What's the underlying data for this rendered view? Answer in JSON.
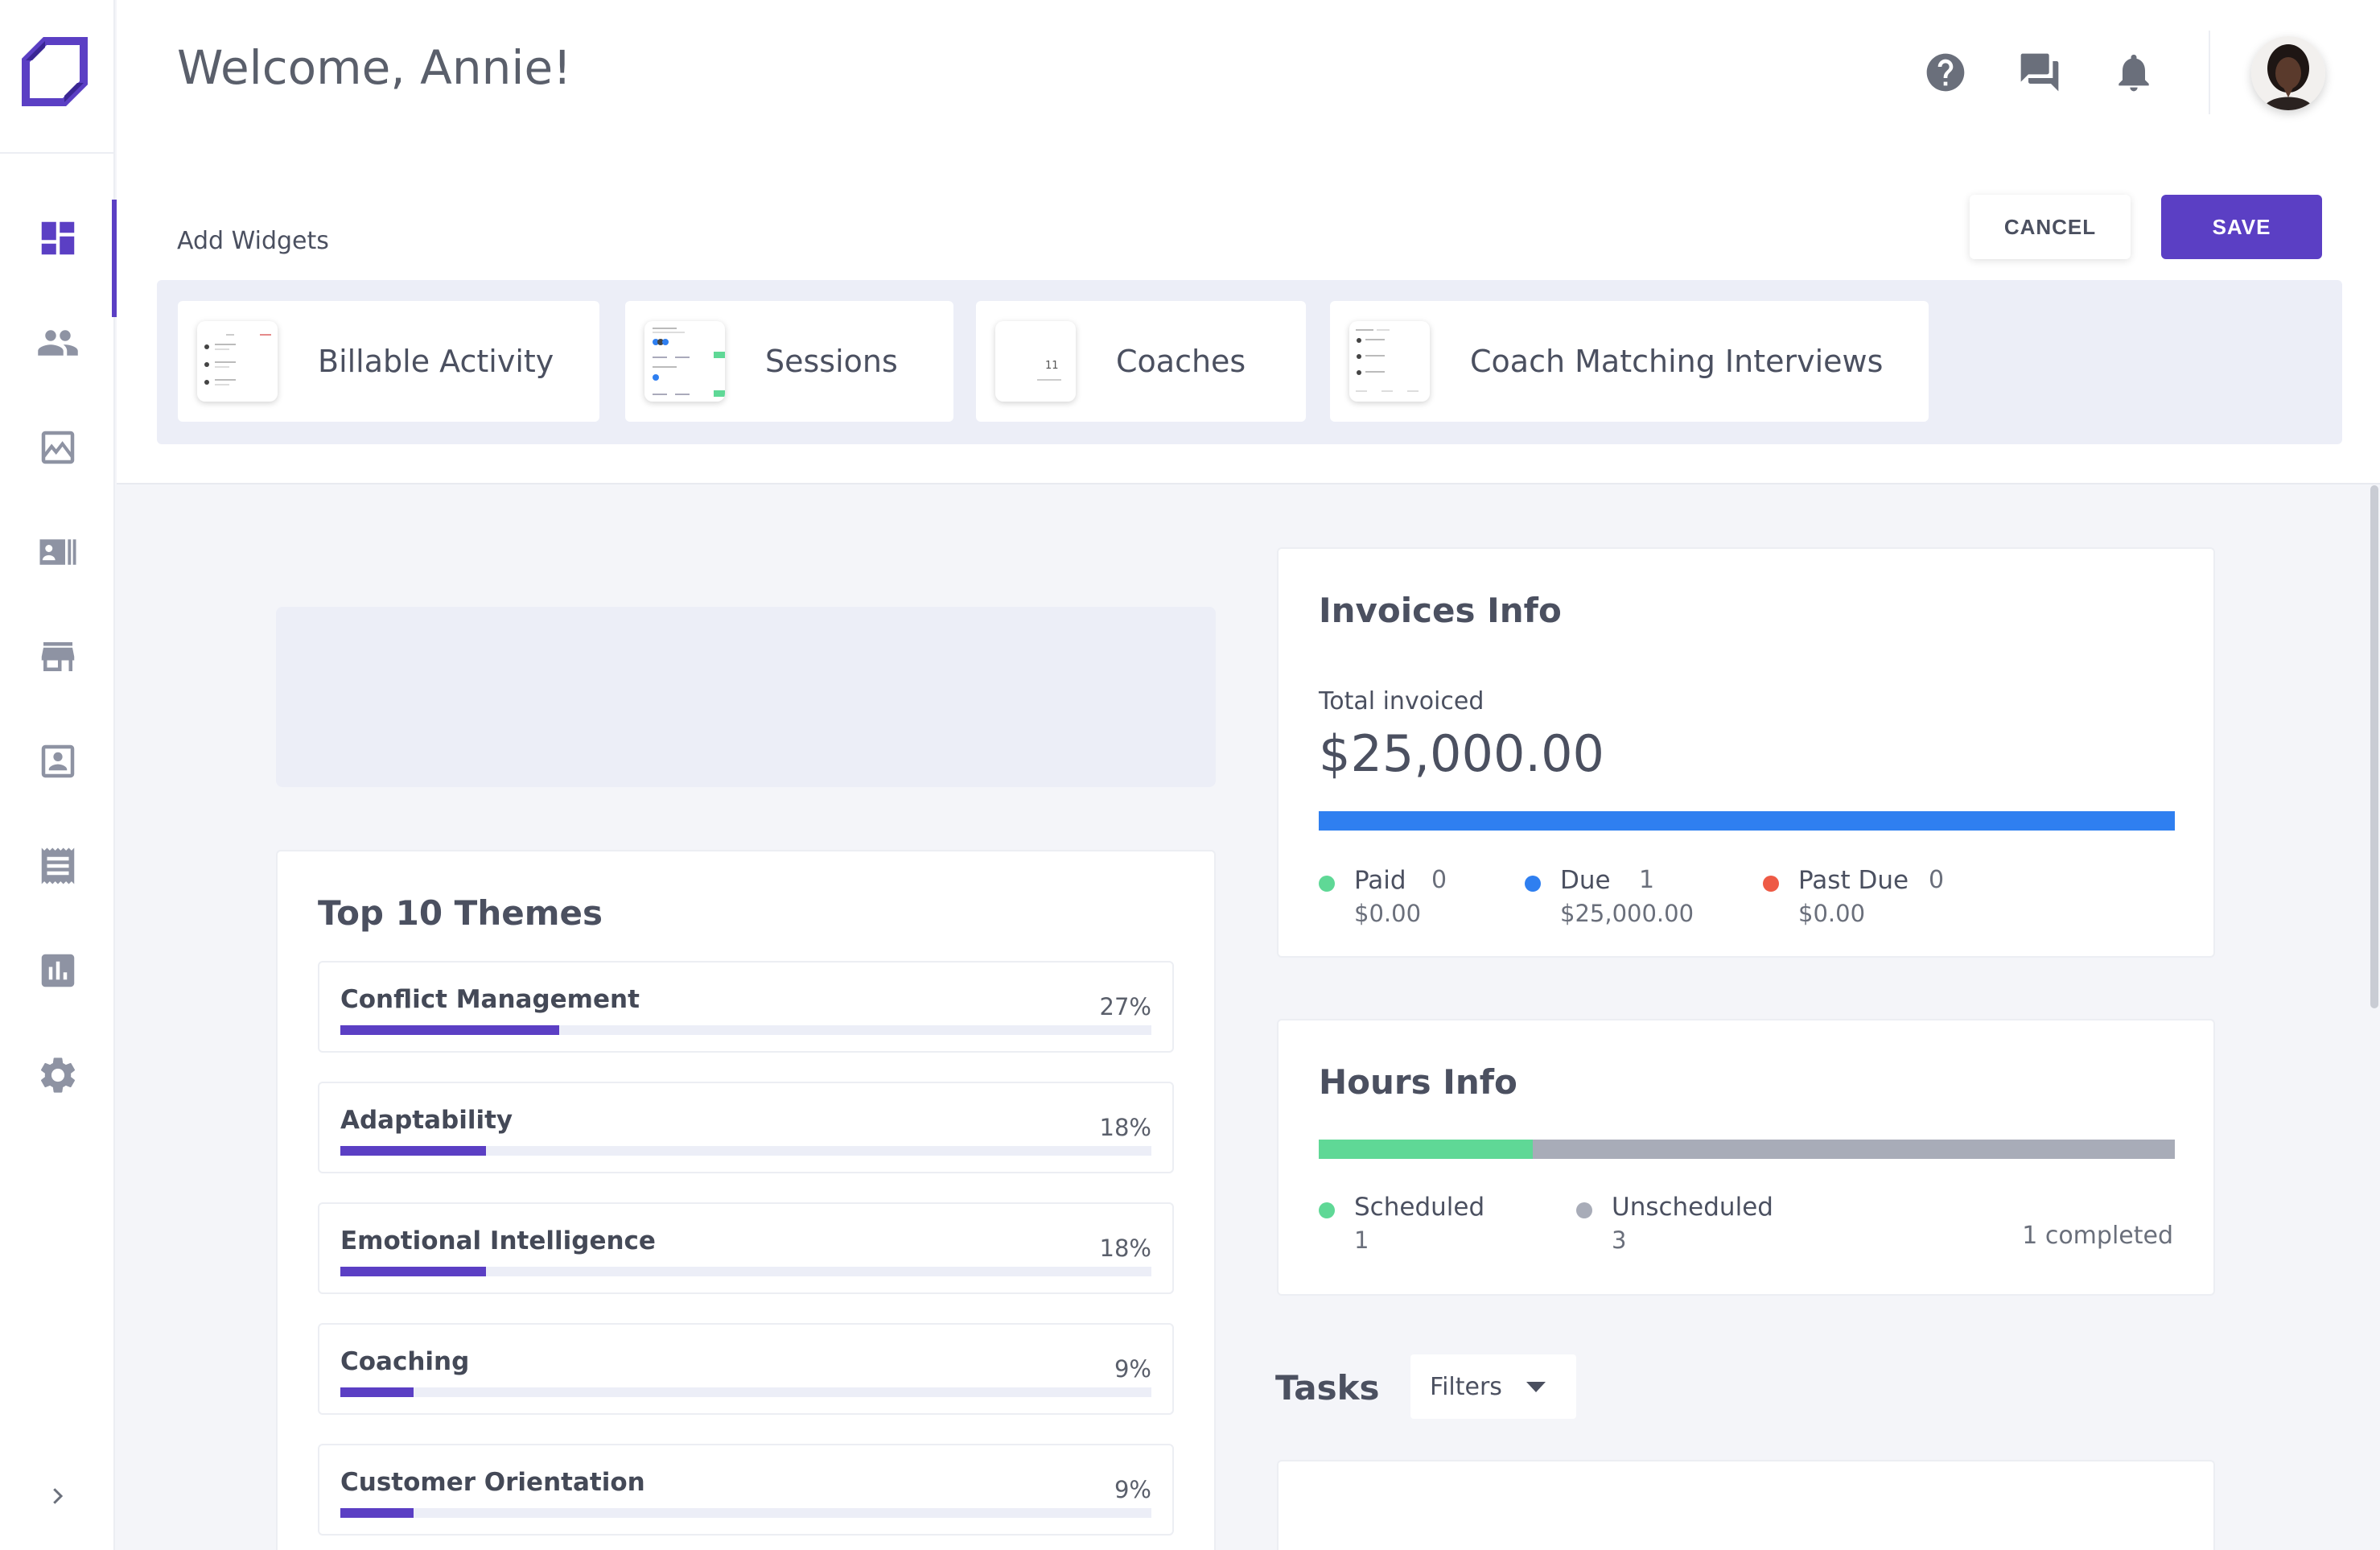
{
  "header": {
    "title": "Welcome, Annie!",
    "icons": [
      "help-icon",
      "chat-icon",
      "bell-icon"
    ]
  },
  "sidebar": {
    "items": [
      {
        "name": "dashboard-icon",
        "active": true
      },
      {
        "name": "people-icon"
      },
      {
        "name": "image-icon"
      },
      {
        "name": "contact-list-icon"
      },
      {
        "name": "store-icon"
      },
      {
        "name": "contact-card-icon"
      },
      {
        "name": "receipt-icon"
      },
      {
        "name": "bar-chart-icon"
      },
      {
        "name": "gear-icon"
      }
    ],
    "expand_icon": "chevron-right-icon"
  },
  "widgets": {
    "label": "Add Widgets",
    "cancel_label": "CANCEL",
    "save_label": "SAVE",
    "items": [
      {
        "label": "Billable Activity"
      },
      {
        "label": "Sessions"
      },
      {
        "label": "Coaches",
        "thumb_text": "11"
      },
      {
        "label": "Coach Matching Interviews"
      }
    ]
  },
  "themes": {
    "title": "Top 10 Themes",
    "items": [
      {
        "name": "Conflict Management",
        "pct_label": "27%",
        "value": 27
      },
      {
        "name": "Adaptability",
        "pct_label": "18%",
        "value": 18
      },
      {
        "name": "Emotional Intelligence",
        "pct_label": "18%",
        "value": 18
      },
      {
        "name": "Coaching",
        "pct_label": "9%",
        "value": 9
      },
      {
        "name": "Customer Orientation",
        "pct_label": "9%",
        "value": 9
      }
    ]
  },
  "invoices": {
    "title": "Invoices Info",
    "total_label": "Total invoiced",
    "total_value": "$25,000.00",
    "legend": [
      {
        "name": "Paid",
        "count": "0",
        "amount": "$0.00",
        "color": "#5fd896"
      },
      {
        "name": "Due",
        "count": "1",
        "amount": "$25,000.00",
        "color": "#2f7ff0"
      },
      {
        "name": "Past Due",
        "count": "0",
        "amount": "$0.00",
        "color": "#ee5a45"
      }
    ],
    "bar_fraction": {
      "paid": 0,
      "due": 1,
      "past_due": 0
    }
  },
  "hours": {
    "title": "Hours Info",
    "legend": [
      {
        "name": "Scheduled",
        "count": "1",
        "color": "#5fd896"
      },
      {
        "name": "Unscheduled",
        "count": "3",
        "color": "#a8acb8"
      }
    ],
    "scheduled_fraction": 0.25,
    "completed_label": "1 completed"
  },
  "tasks": {
    "title": "Tasks",
    "filters_label": "Filters"
  },
  "colors": {
    "accent": "#5b3fc4",
    "tray": "#eceef7"
  }
}
